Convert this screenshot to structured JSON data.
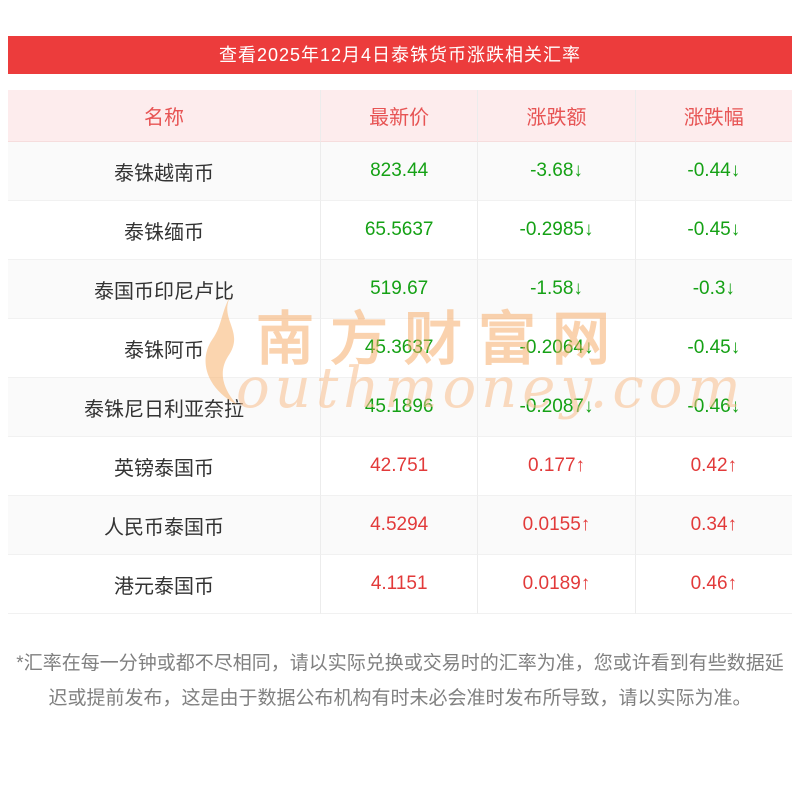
{
  "banner": {
    "title": "查看2025年12月4日泰铢货币涨跌相关汇率",
    "bg_color": "#ec3c3c"
  },
  "table": {
    "headers": [
      "名称",
      "最新价",
      "涨跌额",
      "涨跌幅"
    ],
    "header_text_color": "#e75454",
    "header_bg_color": "#fdeced",
    "down_color": "#15a115",
    "up_color": "#e23a3a",
    "rows": [
      {
        "name": "泰铢越南币",
        "price": "823.44",
        "change": "-3.68↓",
        "pct": "-0.44↓",
        "trend": "down"
      },
      {
        "name": "泰铢缅币",
        "price": "65.5637",
        "change": "-0.2985↓",
        "pct": "-0.45↓",
        "trend": "down"
      },
      {
        "name": "泰国币印尼卢比",
        "price": "519.67",
        "change": "-1.58↓",
        "pct": "-0.3↓",
        "trend": "down"
      },
      {
        "name": "泰铢阿币",
        "price": "45.3637",
        "change": "-0.2064↓",
        "pct": "-0.45↓",
        "trend": "down"
      },
      {
        "name": "泰铢尼日利亚奈拉",
        "price": "45.1896",
        "change": "-0.2087↓",
        "pct": "-0.46↓",
        "trend": "down"
      },
      {
        "name": "英镑泰国币",
        "price": "42.751",
        "change": "0.177↑",
        "pct": "0.42↑",
        "trend": "up"
      },
      {
        "name": "人民币泰国币",
        "price": "4.5294",
        "change": "0.0155↑",
        "pct": "0.34↑",
        "trend": "up"
      },
      {
        "name": "港元泰国币",
        "price": "4.1151",
        "change": "0.0189↑",
        "pct": "0.46↑",
        "trend": "up"
      }
    ]
  },
  "watermark": {
    "cn": "南方财富网",
    "en": "outhmoney.com"
  },
  "footer": {
    "note": "*汇率在每一分钟或都不尽相同，请以实际兑换或交易时的汇率为准，您或许看到有些数据延迟或提前发布，这是由于数据公布机构有时未必会准时发布所导致，请以实际为准。"
  }
}
